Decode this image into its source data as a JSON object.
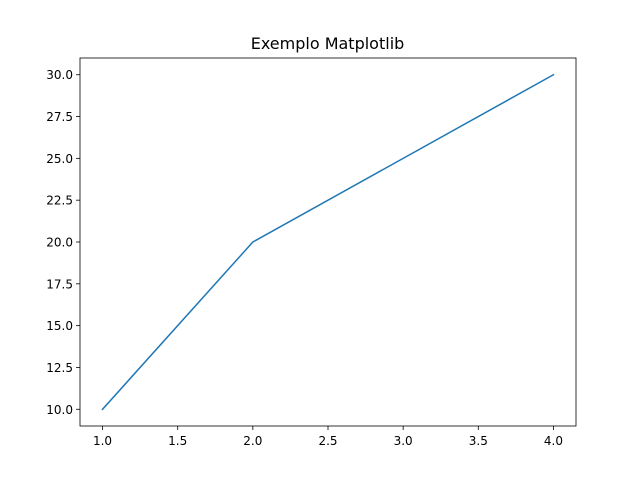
{
  "chart_data": {
    "type": "line",
    "title": "Exemplo Matplotlib",
    "xlabel": "",
    "ylabel": "",
    "x": [
      1.0,
      2.0,
      3.0,
      4.0
    ],
    "series": [
      {
        "values": [
          10,
          20,
          25,
          30
        ],
        "color": "#1f77b4"
      }
    ],
    "xlim": [
      0.85,
      4.15
    ],
    "ylim": [
      9.0,
      31.0
    ],
    "xticks": [
      1.0,
      1.5,
      2.0,
      2.5,
      3.0,
      3.5,
      4.0
    ],
    "xtick_labels": [
      "1.0",
      "1.5",
      "2.0",
      "2.5",
      "3.0",
      "3.5",
      "4.0"
    ],
    "yticks": [
      10.0,
      12.5,
      15.0,
      17.5,
      20.0,
      22.5,
      25.0,
      27.5,
      30.0
    ],
    "ytick_labels": [
      "10.0",
      "12.5",
      "15.0",
      "17.5",
      "20.0",
      "22.5",
      "25.0",
      "27.5",
      "30.0"
    ],
    "grid": false,
    "legend": "none"
  }
}
